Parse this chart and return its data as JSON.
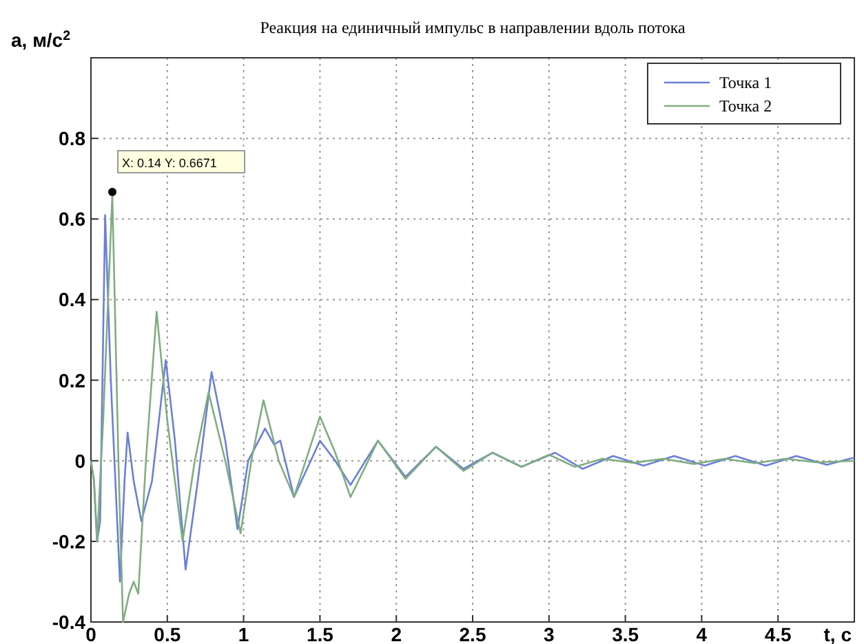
{
  "chart_data": {
    "type": "line",
    "title": "Реакция на единичный импульс в направлении вдоль потока",
    "xlabel": "t, c",
    "ylabel": "a, м/с$^{2}$",
    "xlim": [
      0,
      5
    ],
    "ylim": [
      -0.4,
      1
    ],
    "xticks": [
      0,
      0.5,
      1,
      1.5,
      2,
      2.5,
      3,
      3.5,
      4,
      4.5,
      {
        "value": 5,
        "label": null
      }
    ],
    "yticks": [
      -0.4,
      -0.2,
      0,
      0.2,
      0.4,
      0.6,
      0.8,
      {
        "value": 1,
        "label": null
      }
    ],
    "grid": true,
    "legend": "top right",
    "line_style": "solid",
    "marker": "none",
    "annotations": [
      {
        "text": "X: 0.14 Y: 0.6671",
        "x": 0.14,
        "y": 0.667
      }
    ],
    "series": [
      {
        "name": "Точка 1",
        "color": "#6a7fd8",
        "x": [
          0,
          0.02,
          0.04,
          0.06,
          0.093,
          0.13,
          0.19,
          0.22,
          0.24,
          0.28,
          0.33,
          0.4,
          0.49,
          0.55,
          0.62,
          0.7,
          0.79,
          0.88,
          0.96,
          1.03,
          1.14,
          1.2,
          1.24,
          1.33,
          1.5,
          1.6,
          1.7,
          1.88,
          2.06,
          2.26,
          2.44,
          2.63,
          2.82,
          3.04,
          3.22,
          3.42,
          3.62,
          3.82,
          4.02,
          4.22,
          4.42,
          4.62,
          4.82,
          5.0
        ],
        "values": [
          0,
          -0.05,
          -0.2,
          -0.15,
          0.61,
          0.2,
          -0.3,
          -0.05,
          0.07,
          -0.05,
          -0.15,
          -0.05,
          0.25,
          0.05,
          -0.27,
          -0.05,
          0.22,
          0.05,
          -0.17,
          0,
          0.08,
          0.04,
          0.05,
          -0.09,
          0.05,
          0.0,
          -0.06,
          0.05,
          -0.04,
          0.035,
          -0.02,
          0.02,
          -0.015,
          0.02,
          -0.02,
          0.012,
          -0.012,
          0.012,
          -0.012,
          0.012,
          -0.012,
          0.012,
          -0.01,
          0.008
        ]
      },
      {
        "name": "Точка 2",
        "color": "#7fae7f",
        "x": [
          0,
          0.02,
          0.04,
          0.08,
          0.14,
          0.18,
          0.21,
          0.25,
          0.28,
          0.31,
          0.36,
          0.43,
          0.5,
          0.6,
          0.68,
          0.77,
          0.88,
          0.98,
          1.05,
          1.13,
          1.23,
          1.33,
          1.5,
          1.6,
          1.7,
          1.88,
          2.06,
          2.26,
          2.44,
          2.63,
          2.82,
          3.0,
          3.17,
          3.35,
          3.55,
          3.75,
          3.95,
          4.15,
          4.35,
          4.55,
          4.75,
          5.0
        ],
        "values": [
          0,
          -0.05,
          -0.2,
          0.1,
          0.66,
          0.0,
          -0.4,
          -0.33,
          -0.3,
          -0.33,
          0.0,
          0.37,
          0.1,
          -0.2,
          0.0,
          0.17,
          0.0,
          -0.18,
          0.0,
          0.15,
          0.0,
          -0.09,
          0.11,
          0.02,
          -0.09,
          0.05,
          -0.045,
          0.035,
          -0.025,
          0.02,
          -0.015,
          0.015,
          -0.015,
          0.005,
          -0.005,
          0.005,
          -0.008,
          0.005,
          -0.006,
          0.005,
          -0.004,
          0
        ]
      }
    ]
  }
}
